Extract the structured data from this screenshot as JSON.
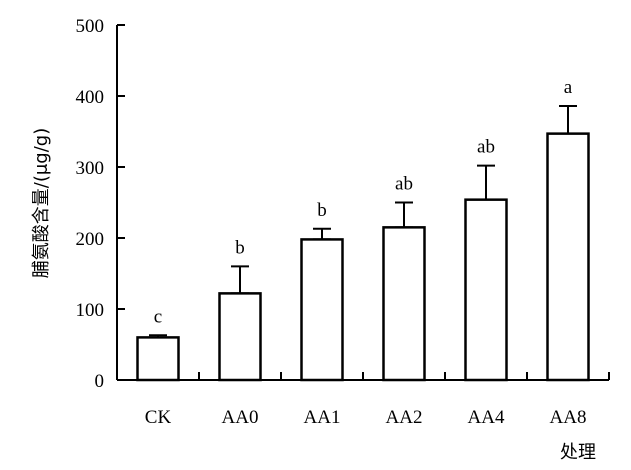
{
  "chart_data": {
    "type": "bar",
    "title": "",
    "xlabel": "处理",
    "ylabel": "脯氨酸含量/(μg/g)",
    "categories": [
      "CK",
      "AA0",
      "AA1",
      "AA2",
      "AA4",
      "AA8"
    ],
    "values": [
      60,
      122,
      198,
      215,
      254,
      347
    ],
    "error": [
      3,
      38,
      15,
      35,
      48,
      39
    ],
    "significance": [
      "c",
      "b",
      "b",
      "ab",
      "ab",
      "a"
    ],
    "ylim": [
      0,
      500
    ],
    "yticks": [
      "0",
      "100",
      "200",
      "300",
      "400",
      "500"
    ],
    "grid": false,
    "legend": "none",
    "bar_fill": "#ffffff",
    "bar_stroke": "#000000"
  }
}
